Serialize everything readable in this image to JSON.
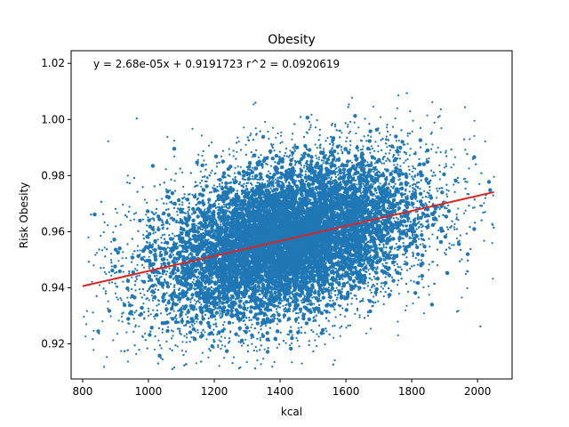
{
  "chart_data": {
    "type": "scatter",
    "title": "Obesity",
    "xlabel": "kcal",
    "ylabel": "Risk Obesity",
    "xlim": [
      765,
      2105
    ],
    "ylim": [
      0.9075,
      1.0245
    ],
    "x_ticks": [
      800,
      1000,
      1200,
      1400,
      1600,
      1800,
      2000
    ],
    "y_ticks": [
      0.92,
      0.94,
      0.96,
      0.98,
      1.0,
      1.02
    ],
    "x_tick_labels": [
      "800",
      "1000",
      "1200",
      "1400",
      "1600",
      "1800",
      "2000"
    ],
    "y_tick_labels": [
      "0.92",
      "0.94",
      "0.96",
      "0.98",
      "1.00",
      "1.02"
    ],
    "grid": false,
    "annotation": "y = 2.68e-05x + 0.9191723  r^2 = 0.0920619",
    "series": [
      {
        "kind": "points",
        "color": "#1f77b4",
        "distribution": {
          "x_center": 1420,
          "x_spread": 230,
          "y_center": 0.9573,
          "y_spread": 0.0155,
          "x_range": [
            800,
            2050
          ],
          "y_range": [
            0.911,
            1.01
          ]
        }
      },
      {
        "kind": "fit-line",
        "color": "#d62728",
        "x": [
          800,
          2050
        ],
        "y": [
          0.9406,
          0.9741
        ],
        "slope": 2.68e-05,
        "intercept": 0.9191723
      }
    ]
  }
}
